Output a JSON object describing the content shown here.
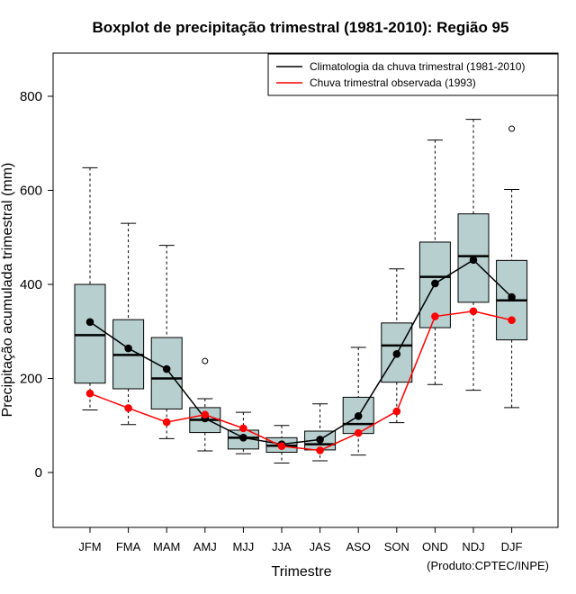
{
  "chart_data": {
    "type": "boxplot",
    "title": "Boxplot de precipitação trimestral (1981-2010): Região 95",
    "xlabel": "Trimestre",
    "ylabel": "Precipitação acumulada trimestral (mm)",
    "credit": "(Produto:CPTEC/INPE)",
    "ylim": [
      -120,
      900
    ],
    "yticks": [
      0,
      200,
      400,
      600,
      800
    ],
    "categories": [
      "JFM",
      "FMA",
      "MAM",
      "AMJ",
      "MJJ",
      "JJA",
      "JAS",
      "ASO",
      "SON",
      "OND",
      "NDJ",
      "DJF"
    ],
    "boxes": [
      {
        "min": 133,
        "q1": 190,
        "median": 292,
        "q3": 400,
        "max": 648,
        "outliers": []
      },
      {
        "min": 102,
        "q1": 178,
        "median": 250,
        "q3": 325,
        "max": 530,
        "outliers": []
      },
      {
        "min": 72,
        "q1": 135,
        "median": 200,
        "q3": 287,
        "max": 483,
        "outliers": []
      },
      {
        "min": 46,
        "q1": 85,
        "median": 112,
        "q3": 138,
        "max": 157,
        "outliers": [
          237
        ]
      },
      {
        "min": 40,
        "q1": 50,
        "median": 74,
        "q3": 90,
        "max": 128,
        "outliers": []
      },
      {
        "min": 20,
        "q1": 43,
        "median": 57,
        "q3": 74,
        "max": 100,
        "outliers": []
      },
      {
        "min": 25,
        "q1": 48,
        "median": 60,
        "q3": 88,
        "max": 146,
        "outliers": []
      },
      {
        "min": 37,
        "q1": 83,
        "median": 103,
        "q3": 160,
        "max": 266,
        "outliers": []
      },
      {
        "min": 106,
        "q1": 192,
        "median": 270,
        "q3": 318,
        "max": 433,
        "outliers": []
      },
      {
        "min": 187,
        "q1": 308,
        "median": 416,
        "q3": 490,
        "max": 707,
        "outliers": []
      },
      {
        "min": 175,
        "q1": 362,
        "median": 460,
        "q3": 550,
        "max": 751,
        "outliers": []
      },
      {
        "min": 138,
        "q1": 282,
        "median": 366,
        "q3": 451,
        "max": 602,
        "outliers": [
          731
        ]
      }
    ],
    "series": [
      {
        "name": "Climatologia da chuva trimestral (1981-2010)",
        "color": "#000000",
        "values": [
          320,
          264,
          220,
          115,
          74,
          60,
          70,
          120,
          252,
          402,
          452,
          373
        ]
      },
      {
        "name": "Chuva trimestral observada (1993)",
        "color": "#ff0000",
        "values": [
          168,
          137,
          107,
          123,
          94,
          56,
          47,
          84,
          130,
          332,
          343,
          324
        ]
      }
    ],
    "box_fill": "#b7cfcf",
    "legend_position": "top-right"
  }
}
